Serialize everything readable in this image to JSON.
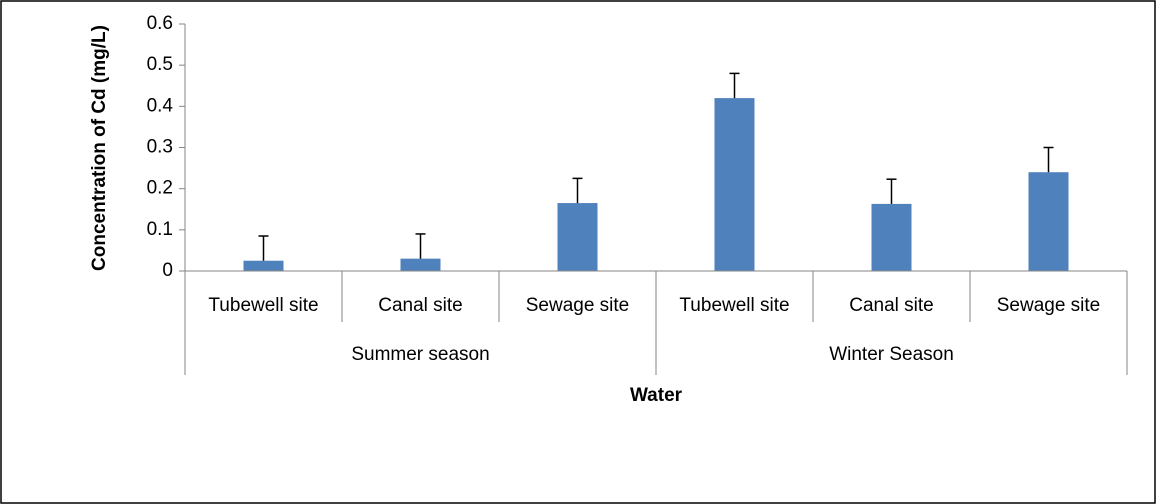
{
  "chart_data": {
    "type": "bar",
    "x_label": "Water",
    "y_label": "Concentration of Cd (mg/L)",
    "categories": [
      "Tubewell site",
      "Canal site",
      "Sewage site",
      "Tubewell site",
      "Canal site",
      "Sewage site"
    ],
    "groups": [
      "Summer season",
      "Winter Season"
    ],
    "values": [
      0.025,
      0.03,
      0.165,
      0.42,
      0.163,
      0.24
    ],
    "errors": [
      0.06,
      0.06,
      0.06,
      0.06,
      0.06,
      0.06
    ],
    "color": "#4f81bd",
    "ylim": [
      0,
      0.6
    ],
    "yticks": [
      0,
      0.1,
      0.2,
      0.3,
      0.4,
      0.5,
      0.6
    ],
    "grid": false
  }
}
